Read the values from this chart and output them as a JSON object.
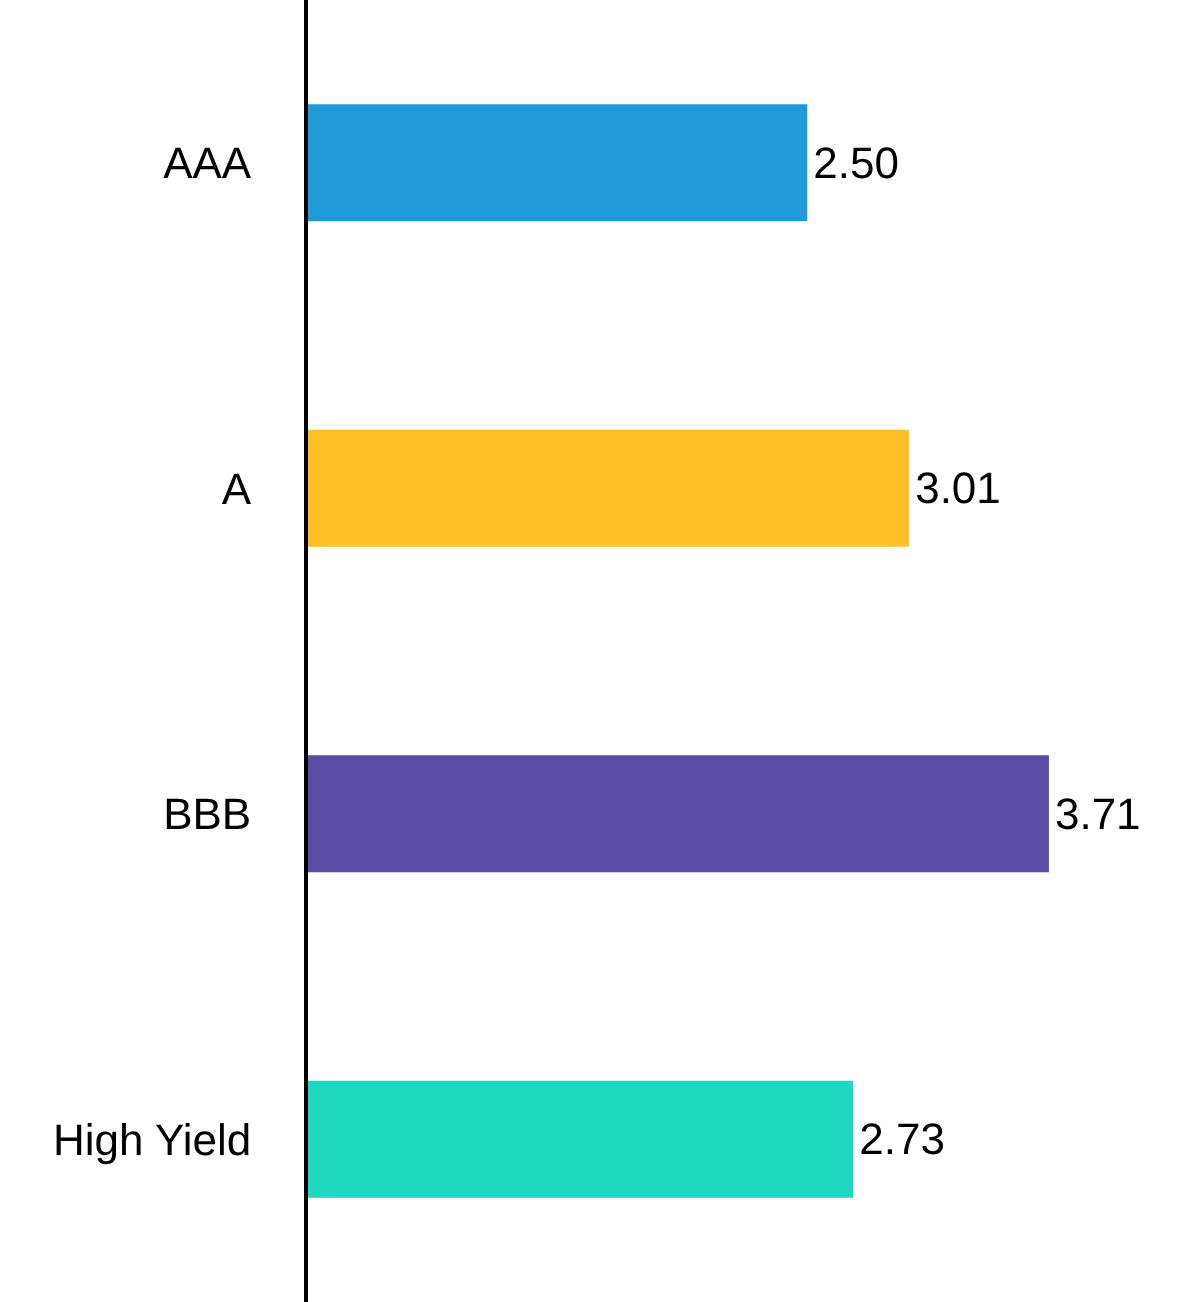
{
  "chart_data": {
    "type": "bar",
    "orientation": "horizontal",
    "categories": [
      "AAA",
      "A",
      "BBB",
      "High Yield"
    ],
    "values": [
      2.5,
      3.01,
      3.71,
      2.73
    ],
    "colors": [
      "#1f9ad6",
      "#ffbf27",
      "#5a4ba4",
      "#1fd8c1"
    ],
    "value_labels": [
      "2.50",
      "3.01",
      "3.71",
      "2.73"
    ],
    "tick_labels": "y",
    "grid": false,
    "legend": false
  }
}
